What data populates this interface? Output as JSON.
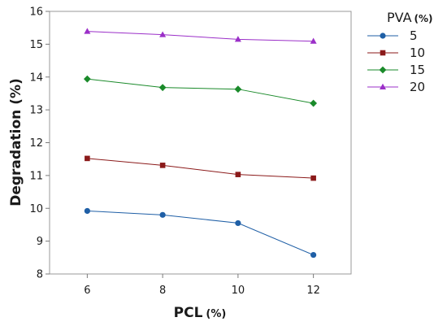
{
  "chart_data": {
    "type": "line",
    "xlabel": "PCL",
    "xlabel_unit": "(%)",
    "ylabel": "Degradation (%)",
    "x": [
      6,
      8,
      10,
      12
    ],
    "xticks": [
      "6",
      "8",
      "10",
      "12"
    ],
    "yticks": [
      "8",
      "9",
      "10",
      "11",
      "12",
      "13",
      "14",
      "15",
      "16"
    ],
    "xlim": [
      5,
      13
    ],
    "ylim": [
      8,
      16
    ],
    "grid": false,
    "legend_position": "right",
    "legend_title": "PVA",
    "legend_title_unit": "(%)",
    "series": [
      {
        "name": "5",
        "values": [
          9.92,
          9.8,
          9.55,
          8.58
        ],
        "color": "#1f5fa6",
        "marker": "circle"
      },
      {
        "name": "10",
        "values": [
          11.52,
          11.31,
          11.03,
          10.92
        ],
        "color": "#8b1a1a",
        "marker": "square"
      },
      {
        "name": "15",
        "values": [
          13.94,
          13.68,
          13.63,
          13.2
        ],
        "color": "#1a8a2a",
        "marker": "diamond"
      },
      {
        "name": "20",
        "values": [
          15.39,
          15.29,
          15.15,
          15.09
        ],
        "color": "#9b2fc8",
        "marker": "triangle"
      }
    ]
  }
}
